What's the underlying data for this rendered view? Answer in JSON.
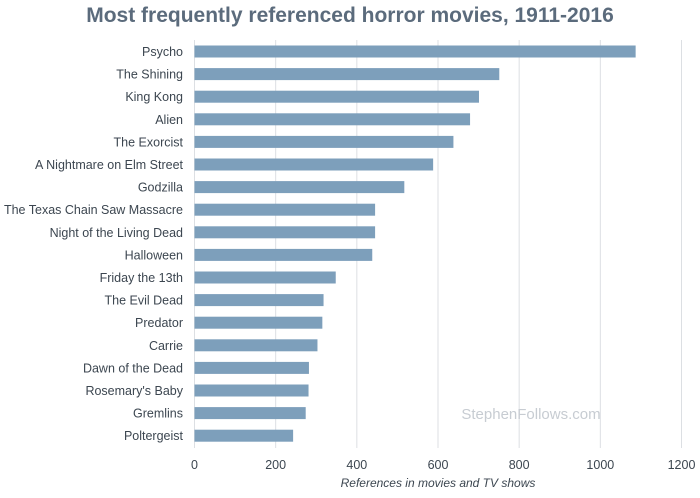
{
  "chart_data": {
    "type": "bar",
    "orientation": "horizontal",
    "title": "Most frequently referenced horror movies, 1911-2016",
    "xlabel": "References in movies and TV shows",
    "ylabel": "",
    "xlim": [
      0,
      1200
    ],
    "xticks": [
      0,
      200,
      400,
      600,
      800,
      1000,
      1200
    ],
    "grid": "vertical",
    "bar_color": "#7d9fbb",
    "watermark": "StephenFollows.com",
    "categories": [
      "Psycho",
      "The Shining",
      "King Kong",
      "Alien",
      "The Exorcist",
      "A Nightmare on Elm Street",
      "Godzilla",
      "The Texas Chain Saw Massacre",
      "Night of the Living Dead",
      "Halloween",
      "Friday the 13th",
      "The Evil Dead",
      "Predator",
      "Carrie",
      "Dawn of the Dead",
      "Rosemary's Baby",
      "Gremlins",
      "Poltergeist"
    ],
    "values": [
      1087,
      751,
      701,
      679,
      638,
      588,
      517,
      445,
      445,
      438,
      348,
      318,
      315,
      303,
      282,
      281,
      274,
      243
    ]
  }
}
